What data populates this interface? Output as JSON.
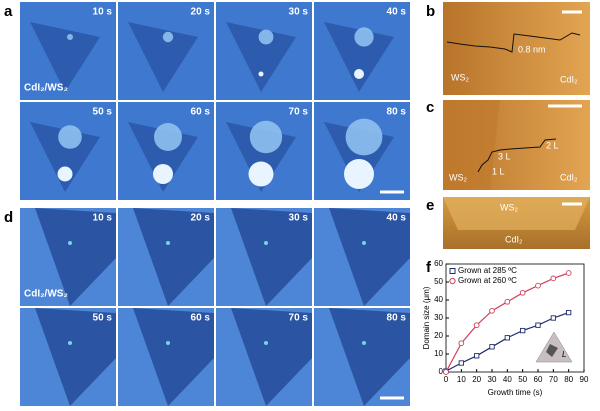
{
  "panels": {
    "a": {
      "label": "a",
      "times": [
        "10 s",
        "20 s",
        "30 s",
        "40 s",
        "50 s",
        "60 s",
        "70 s",
        "80 s"
      ],
      "sample": "CdI₂/WS₂"
    },
    "b": {
      "label": "b",
      "left": "WS₂",
      "right": "CdI₂",
      "step": "0.8 nm"
    },
    "c": {
      "label": "c",
      "left": "WS₂",
      "right": "CdI₂",
      "layers": [
        "3 L",
        "2 L",
        "1 L"
      ]
    },
    "d": {
      "label": "d",
      "times": [
        "10 s",
        "20 s",
        "30 s",
        "40 s",
        "50 s",
        "60 s",
        "70 s",
        "80 s"
      ],
      "sample": "CdI₂/WS₂"
    },
    "e": {
      "label": "e",
      "top": "WS₂",
      "bottom": "CdI₂"
    },
    "f": {
      "label": "f"
    }
  },
  "chart_data": {
    "type": "scatter",
    "xlabel": "Growth time (s)",
    "ylabel": "Domain size (μm)",
    "x": [
      0,
      10,
      20,
      30,
      40,
      50,
      60,
      70,
      80
    ],
    "series": [
      {
        "name": "Grown at 285 ºC",
        "color": "#1f2d6b",
        "marker": "square",
        "values": [
          0.5,
          5,
          9,
          14,
          19,
          23,
          26,
          30,
          33
        ]
      },
      {
        "name": "Grown at 260 ºC",
        "color": "#d0415a",
        "marker": "circle",
        "values": [
          0,
          16,
          26,
          34,
          39,
          44,
          48,
          52,
          55
        ]
      }
    ],
    "xlim": [
      0,
      90
    ],
    "ylim": [
      0,
      60
    ],
    "xticks": [
      0,
      10,
      20,
      30,
      40,
      50,
      60,
      70,
      80,
      90
    ],
    "yticks": [
      0,
      10,
      20,
      30,
      40,
      50,
      60
    ],
    "legend": "upper left",
    "inset_label": "L"
  }
}
